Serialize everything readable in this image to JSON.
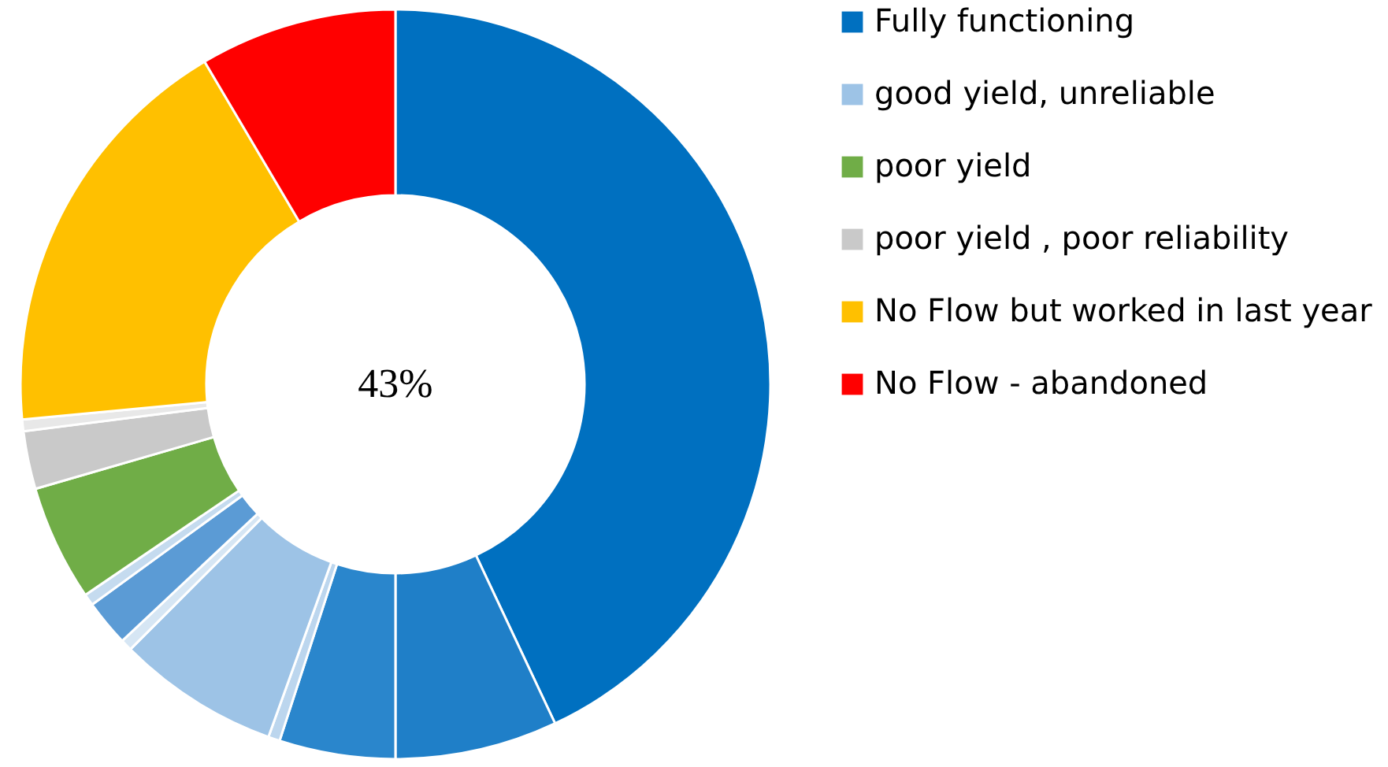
{
  "chart_data": {
    "type": "donut",
    "categories": [
      "Fully functioning",
      null,
      null,
      null,
      "good yield, unreliable",
      null,
      null,
      null,
      "poor yield",
      "poor yield , poor reliability",
      null,
      "No Flow but worked in last year",
      "No Flow - abandoned"
    ],
    "values": [
      43,
      7,
      5,
      0.5,
      7,
      0.5,
      2,
      0.5,
      5,
      2.5,
      0.5,
      18,
      8.5
    ],
    "colors": [
      "#0070c0",
      "#1f7fc8",
      "#2a86cc",
      "#bcd6ee",
      "#9dc3e6",
      "#d6e6f4",
      "#5b9bd5",
      "#c5dbef",
      "#70ad47",
      "#c9c9c9",
      "#e8e8e8",
      "#ffc000",
      "#ff0000"
    ],
    "annotations": [
      "43%"
    ],
    "legend": "right"
  }
}
